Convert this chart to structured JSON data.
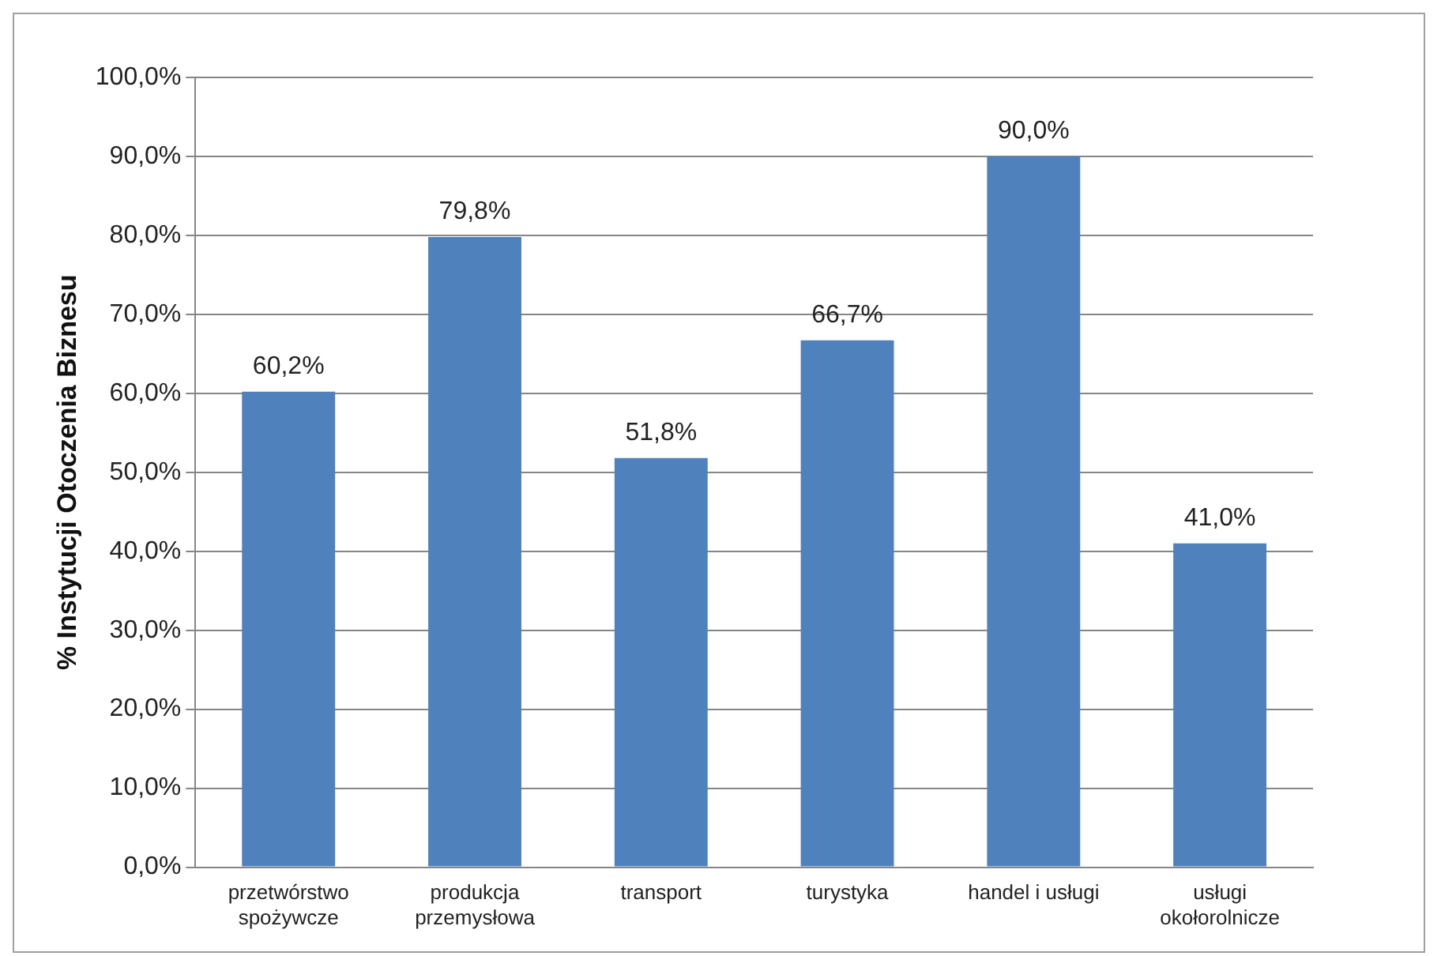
{
  "chart_data": {
    "type": "bar",
    "ylabel": "% Instytucji Otoczenia Biznesu",
    "categories": [
      "przetwórstwo spożywcze",
      "produkcja przemysłowa",
      "transport",
      "turystyka",
      "handel i usługi",
      "usługi okołorolnicze"
    ],
    "values": [
      60.2,
      79.8,
      51.8,
      66.7,
      90.0,
      41.0
    ],
    "value_labels": [
      "60,2%",
      "79,8%",
      "51,8%",
      "66,7%",
      "90,0%",
      "41,0%"
    ],
    "color": "#4f81bd",
    "ylim": [
      0,
      100
    ],
    "yticks": [
      {
        "value": 0,
        "label": "0,0%"
      },
      {
        "value": 10,
        "label": "10,0%"
      },
      {
        "value": 20,
        "label": "20,0%"
      },
      {
        "value": 30,
        "label": "30,0%"
      },
      {
        "value": 40,
        "label": "40,0%"
      },
      {
        "value": 50,
        "label": "50,0%"
      },
      {
        "value": 60,
        "label": "60,0%"
      },
      {
        "value": 70,
        "label": "70,0%"
      },
      {
        "value": 80,
        "label": "80,0%"
      },
      {
        "value": 90,
        "label": "90,0%"
      },
      {
        "value": 100,
        "label": "100,0%"
      }
    ],
    "grid": "y",
    "legend": false
  }
}
